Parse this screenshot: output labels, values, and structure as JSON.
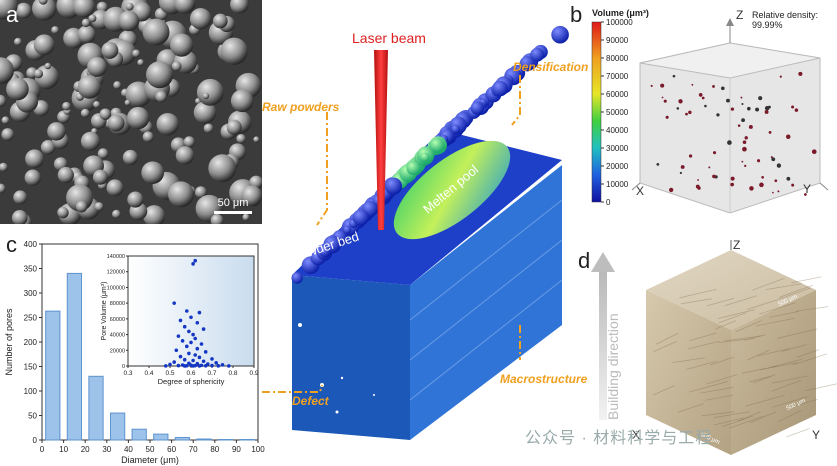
{
  "panels": {
    "a": {
      "letter": "a",
      "scale_label": "50 μm"
    },
    "b": {
      "letter": "b",
      "colorbar_title": "Volume (μm³)",
      "colorbar_ticks": [
        "100000",
        "90000",
        "80000",
        "70000",
        "60000",
        "50000",
        "40000",
        "30000",
        "20000",
        "10000",
        "0"
      ],
      "relative_density_label": "Relative density:",
      "relative_density_value": "99.99%",
      "axes": {
        "x": "X",
        "y": "Y",
        "z": "Z"
      }
    },
    "c": {
      "letter": "c"
    },
    "d": {
      "letter": "d",
      "axes": {
        "x": "X",
        "y": "Y",
        "z": "Z"
      },
      "scale_1": "500 μm",
      "scale_2": "500 μm",
      "scale_3": "500 μm"
    }
  },
  "center": {
    "laser": "Laser beam",
    "raw_powders": "Raw powders",
    "densification": "Densification",
    "molten_pool": "Melten pool",
    "powder_bed": "Powder bed",
    "defect": "Defect",
    "macrostructure": "Macrostructure",
    "building_direction": "Building direction"
  },
  "watermark": "公众号 · 材料科学与工程",
  "chart_data": [
    {
      "type": "bar",
      "xlabel": "Diameter (μm)",
      "ylabel": "Number of pores",
      "xlim": [
        0,
        100
      ],
      "ylim": [
        0,
        400
      ],
      "x_ticks": [
        0,
        10,
        20,
        30,
        40,
        50,
        60,
        70,
        80,
        90,
        100
      ],
      "y_ticks": [
        0,
        50,
        100,
        150,
        200,
        250,
        300,
        350,
        400
      ],
      "bin_centers": [
        5,
        15,
        25,
        35,
        45,
        55,
        65,
        75,
        85,
        95
      ],
      "values": [
        263,
        340,
        130,
        55,
        22,
        12,
        5,
        2,
        1,
        1
      ],
      "colors": {
        "bar": "#9ec3ea",
        "bar_edge": "#5d93cf"
      }
    },
    {
      "type": "scatter",
      "xlabel": "Degree of sphericity",
      "ylabel": "Pore Volume (μm³)",
      "xlim": [
        0.3,
        0.9
      ],
      "ylim": [
        0,
        140000
      ],
      "x_ticks": [
        0.3,
        0.4,
        0.5,
        0.6,
        0.7,
        0.8,
        0.9
      ],
      "y_ticks": [
        0,
        20000,
        40000,
        60000,
        80000,
        100000,
        120000,
        140000
      ],
      "points": [
        [
          0.62,
          134000
        ],
        [
          0.61,
          130000
        ],
        [
          0.52,
          80000
        ],
        [
          0.58,
          70000
        ],
        [
          0.64,
          68000
        ],
        [
          0.6,
          62000
        ],
        [
          0.55,
          58000
        ],
        [
          0.63,
          55000
        ],
        [
          0.57,
          50000
        ],
        [
          0.66,
          47000
        ],
        [
          0.59,
          44000
        ],
        [
          0.61,
          40000
        ],
        [
          0.54,
          38000
        ],
        [
          0.62,
          35000
        ],
        [
          0.56,
          32000
        ],
        [
          0.6,
          30000
        ],
        [
          0.65,
          28000
        ],
        [
          0.58,
          25000
        ],
        [
          0.63,
          22000
        ],
        [
          0.53,
          20000
        ],
        [
          0.67,
          18000
        ],
        [
          0.59,
          16000
        ],
        [
          0.62,
          14000
        ],
        [
          0.55,
          12000
        ],
        [
          0.64,
          11000
        ],
        [
          0.7,
          9000
        ],
        [
          0.57,
          8000
        ],
        [
          0.61,
          7000
        ],
        [
          0.66,
          6000
        ],
        [
          0.52,
          5000
        ],
        [
          0.72,
          4000
        ],
        [
          0.59,
          3500
        ],
        [
          0.63,
          3000
        ],
        [
          0.68,
          2500
        ],
        [
          0.5,
          2000
        ],
        [
          0.75,
          1500
        ],
        [
          0.56,
          1200
        ],
        [
          0.6,
          1000
        ],
        [
          0.65,
          800
        ],
        [
          0.7,
          600
        ],
        [
          0.54,
          500
        ],
        [
          0.62,
          400
        ],
        [
          0.58,
          300
        ],
        [
          0.67,
          250
        ],
        [
          0.73,
          200
        ],
        [
          0.48,
          150
        ],
        [
          0.78,
          120
        ],
        [
          0.61,
          100
        ],
        [
          0.64,
          80
        ],
        [
          0.57,
          60
        ]
      ],
      "colors": {
        "point": "#1537c4",
        "bg_left": "#ffffff",
        "bg_right": "#c9dcee"
      }
    }
  ],
  "colors": {
    "orange": "#f0a020",
    "laser": "#e02020",
    "block": "#2f6fd0"
  }
}
